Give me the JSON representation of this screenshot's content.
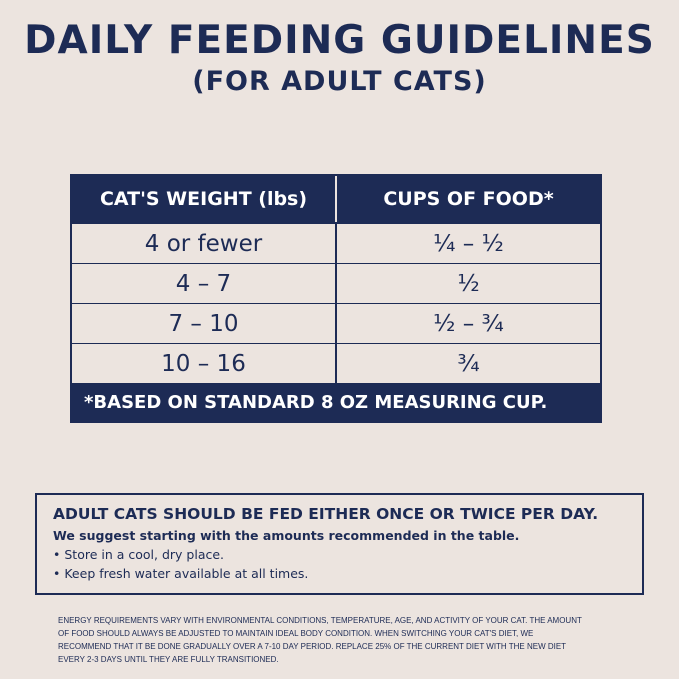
{
  "title": "DAILY FEEDING GUIDELINES",
  "subtitle": "(FOR ADULT CATS)",
  "colors": {
    "navy": "#1d2b55",
    "background": "#ece4df"
  },
  "table": {
    "headers": [
      "CAT'S WEIGHT (lbs)",
      "CUPS OF FOOD*"
    ],
    "rows": [
      {
        "weight": "4 or fewer",
        "cups": "¼ – ½"
      },
      {
        "weight": "4 – 7",
        "cups": "½"
      },
      {
        "weight": "7 – 10",
        "cups": "½ – ¾"
      },
      {
        "weight": "10 – 16",
        "cups": "¾"
      }
    ],
    "footnote": "*BASED ON STANDARD 8 OZ MEASURING CUP."
  },
  "info": {
    "heading": "ADULT CATS SHOULD BE FED EITHER ONCE OR TWICE PER DAY.",
    "intro": "We suggest starting with the amounts recommended in the table.",
    "bullets": [
      "Store in a cool, dry place.",
      "Keep fresh water available at all times."
    ]
  },
  "disclaimer": "ENERGY REQUIREMENTS VARY WITH ENVIRONMENTAL CONDITIONS, TEMPERATURE, AGE, AND ACTIVITY OF YOUR CAT. THE AMOUNT OF FOOD SHOULD ALWAYS BE ADJUSTED TO MAINTAIN IDEAL BODY CONDITION. WHEN SWITCHING YOUR CAT'S DIET, WE RECOMMEND THAT IT BE DONE GRADUALLY OVER A 7-10 DAY PERIOD. REPLACE 25% OF THE CURRENT DIET WITH THE NEW DIET EVERY 2-3 DAYS UNTIL THEY ARE FULLY TRANSITIONED."
}
